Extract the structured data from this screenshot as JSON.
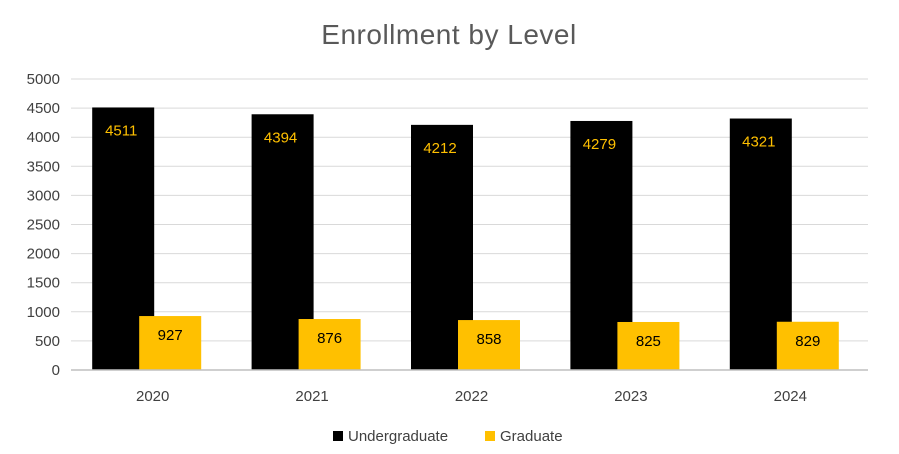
{
  "chart_data": {
    "type": "bar",
    "title": "Enrollment by Level",
    "xlabel": "",
    "ylabel": "",
    "categories": [
      "2020",
      "2021",
      "2022",
      "2023",
      "2024"
    ],
    "series": [
      {
        "name": "Undergraduate",
        "color": "#000000",
        "label_color": "#FFC000",
        "values": [
          4511,
          4394,
          4212,
          4279,
          4321
        ]
      },
      {
        "name": "Graduate",
        "color": "#FFC000",
        "label_color": "#000000",
        "values": [
          927,
          876,
          858,
          825,
          829
        ]
      }
    ],
    "ylim": [
      0,
      5000
    ],
    "yticks": [
      0,
      500,
      1000,
      1500,
      2000,
      2500,
      3000,
      3500,
      4000,
      4500,
      5000
    ],
    "grid": true,
    "legend": "bottom"
  }
}
